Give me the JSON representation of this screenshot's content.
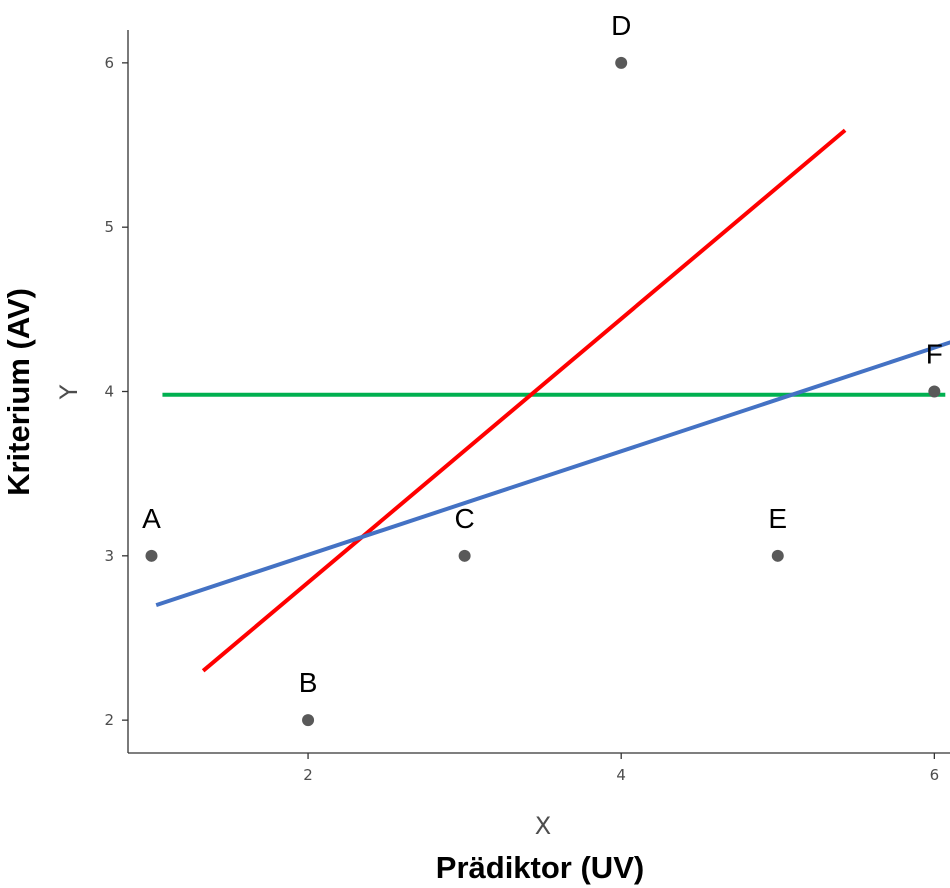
{
  "chart_data": {
    "type": "scatter",
    "title": "",
    "xlabel": "X",
    "ylabel": "Y",
    "xlabel_annotation": "Prädiktor (UV)",
    "ylabel_annotation": "Kriterium (AV)",
    "xlim": [
      0.85,
      6.1
    ],
    "ylim": [
      1.8,
      6.2
    ],
    "xticks": [
      2,
      4,
      6
    ],
    "yticks": [
      2,
      3,
      4,
      5,
      6
    ],
    "grid": false,
    "points": [
      {
        "label": "A",
        "x": 1,
        "y": 3
      },
      {
        "label": "B",
        "x": 2,
        "y": 2
      },
      {
        "label": "C",
        "x": 3,
        "y": 3
      },
      {
        "label": "D",
        "x": 4,
        "y": 6
      },
      {
        "label": "E",
        "x": 5,
        "y": 3
      },
      {
        "label": "F",
        "x": 6,
        "y": 4
      }
    ],
    "lines": [
      {
        "color": "#00b050",
        "x": [
          1.07,
          6.07
        ],
        "y": [
          3.98,
          3.98
        ]
      },
      {
        "color": "#ff0000",
        "x": [
          1.33,
          5.43
        ],
        "y": [
          2.3,
          5.59
        ]
      },
      {
        "color": "#4472c4",
        "x": [
          1.03,
          6.2
        ],
        "y": [
          2.7,
          4.33
        ]
      }
    ]
  }
}
